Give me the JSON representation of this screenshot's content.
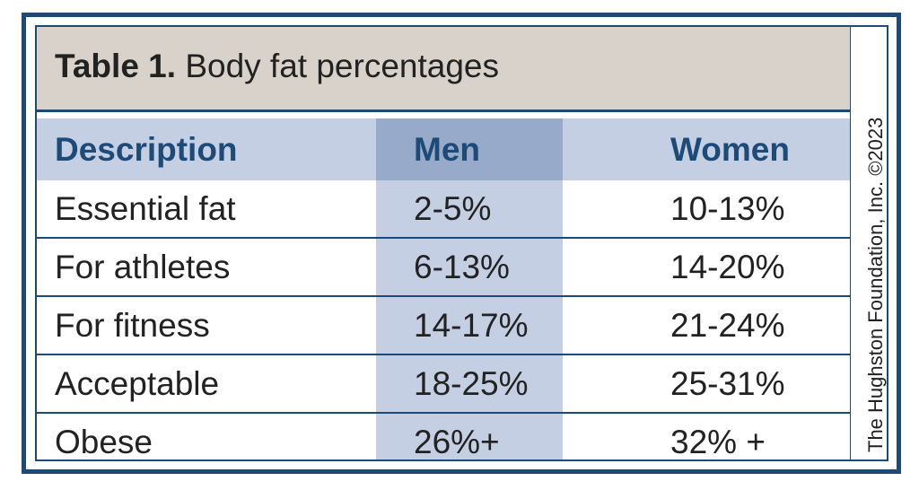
{
  "table": {
    "title_label": "Table 1.",
    "title_text": "Body fat percentages",
    "headers": [
      "Description",
      "Men",
      "Women"
    ],
    "rows": [
      [
        "Essential fat",
        "2-5%",
        "10-13%"
      ],
      [
        "For athletes",
        "6-13%",
        "14-20%"
      ],
      [
        "For fitness",
        "14-17%",
        "21-24%"
      ],
      [
        "Acceptable",
        "18-25%",
        "25-31%"
      ],
      [
        "Obese",
        "26%+",
        "32% +"
      ]
    ]
  },
  "credit": "The Hughston Foundation, Inc. ©2023",
  "colors": {
    "border": "#1e4a78",
    "title_bg": "#d8d2cb",
    "header_bg": "#c5cfe3",
    "men_header_bg": "#98aac9",
    "men_column_bg": "#c5cfe3",
    "header_text": "#1e4a78"
  }
}
